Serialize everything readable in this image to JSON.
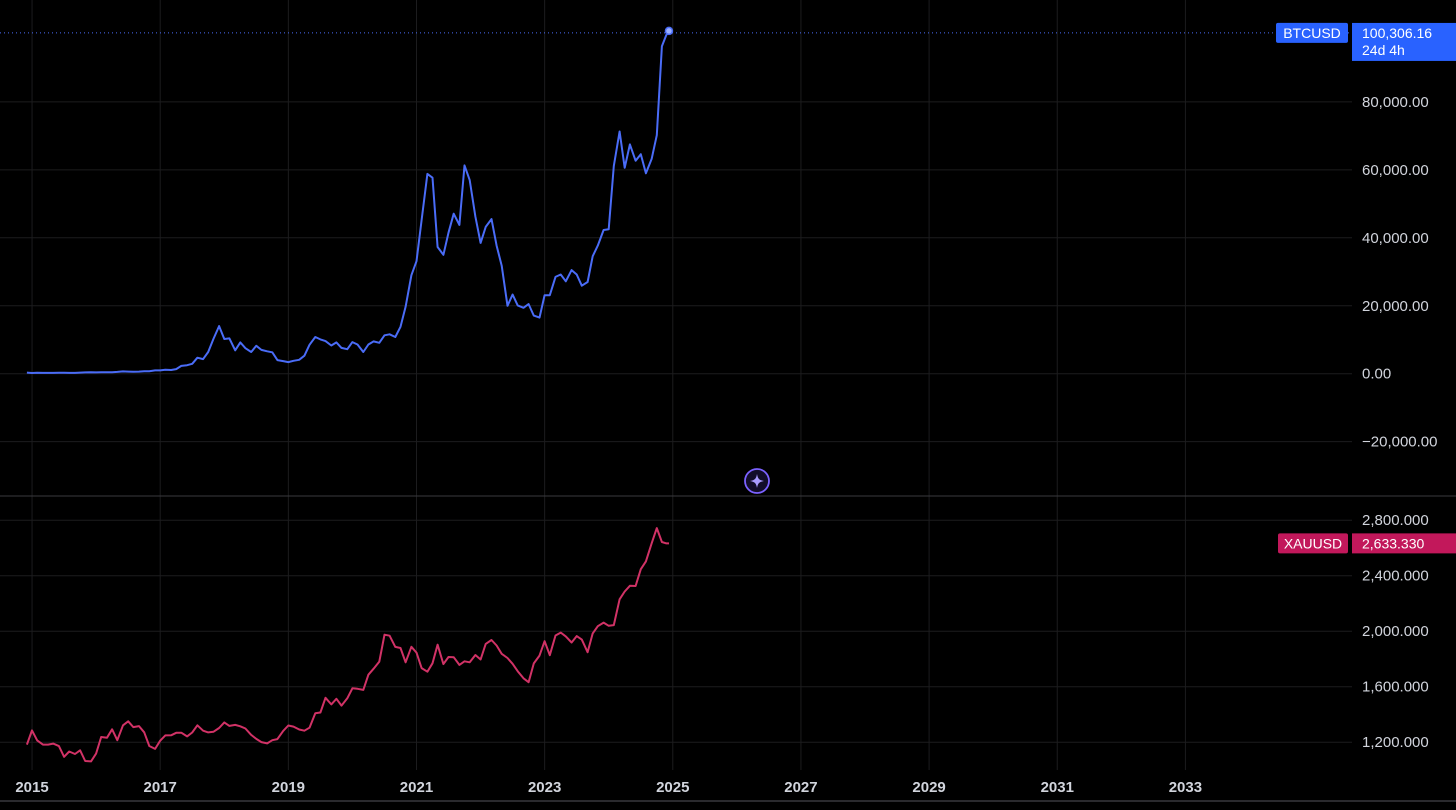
{
  "colors": {
    "background": "#000000",
    "grid": "#1c1c1e",
    "separator": "#3a3a3e",
    "btc_line": "#4a6cf7",
    "xau_line": "#d13266",
    "btc_badge": "#2962ff",
    "xau_badge": "#c2185b",
    "axis_text": "#d1d4dc",
    "ai_icon": "#7b61ff"
  },
  "icons": {
    "ai_button": "sparkle-icon"
  },
  "chart_data": [
    {
      "type": "line",
      "series": [
        {
          "name": "BTCUSD",
          "x": [
            2014.92,
            2015.0,
            2015.08,
            2015.17,
            2015.25,
            2015.33,
            2015.42,
            2015.5,
            2015.58,
            2015.67,
            2015.75,
            2015.83,
            2015.92,
            2016.0,
            2016.08,
            2016.17,
            2016.25,
            2016.33,
            2016.42,
            2016.5,
            2016.58,
            2016.67,
            2016.75,
            2016.83,
            2016.92,
            2017.0,
            2017.08,
            2017.17,
            2017.25,
            2017.33,
            2017.42,
            2017.5,
            2017.58,
            2017.67,
            2017.75,
            2017.83,
            2017.92,
            2018.0,
            2018.08,
            2018.17,
            2018.25,
            2018.33,
            2018.42,
            2018.5,
            2018.58,
            2018.67,
            2018.75,
            2018.83,
            2018.92,
            2019.0,
            2019.08,
            2019.17,
            2019.25,
            2019.33,
            2019.42,
            2019.5,
            2019.58,
            2019.67,
            2019.75,
            2019.83,
            2019.92,
            2020.0,
            2020.08,
            2020.17,
            2020.25,
            2020.33,
            2020.42,
            2020.5,
            2020.58,
            2020.67,
            2020.75,
            2020.83,
            2020.92,
            2021.0,
            2021.08,
            2021.17,
            2021.25,
            2021.33,
            2021.42,
            2021.5,
            2021.58,
            2021.67,
            2021.75,
            2021.83,
            2021.92,
            2022.0,
            2022.08,
            2022.17,
            2022.25,
            2022.33,
            2022.42,
            2022.5,
            2022.58,
            2022.67,
            2022.75,
            2022.83,
            2022.92,
            2023.0,
            2023.08,
            2023.17,
            2023.25,
            2023.33,
            2023.42,
            2023.5,
            2023.58,
            2023.67,
            2023.75,
            2023.83,
            2023.92,
            2024.0,
            2024.08,
            2024.17,
            2024.25,
            2024.33,
            2024.42,
            2024.5,
            2024.58,
            2024.67,
            2024.75,
            2024.83,
            2024.9,
            2024.94
          ],
          "values": [
            320,
            220,
            250,
            240,
            230,
            240,
            260,
            280,
            230,
            240,
            310,
            380,
            430,
            370,
            440,
            420,
            450,
            530,
            680,
            620,
            570,
            610,
            700,
            740,
            960,
            970,
            1190,
            1080,
            1350,
            2300,
            2500,
            2900,
            4700,
            4300,
            6400,
            10200,
            14000,
            10200,
            10400,
            6900,
            9200,
            7500,
            6400,
            8200,
            7000,
            6600,
            6300,
            4000,
            3700,
            3400,
            3800,
            4100,
            5300,
            8500,
            10800,
            10100,
            9600,
            8300,
            9200,
            7600,
            7200,
            9300,
            8600,
            6400,
            8600,
            9500,
            9100,
            11300,
            11600,
            10800,
            13800,
            19700,
            29000,
            33100,
            45200,
            58800,
            57700,
            37300,
            35000,
            41500,
            47100,
            43800,
            61300,
            57000,
            46200,
            38500,
            43200,
            45500,
            37700,
            31800,
            20000,
            23300,
            20100,
            19400,
            20500,
            17100,
            16500,
            23100,
            23100,
            28500,
            29200,
            27200,
            30500,
            29200,
            25900,
            27000,
            34600,
            37700,
            42300,
            42500,
            61100,
            71300,
            60600,
            67500,
            62700,
            64600,
            59000,
            63300,
            70200,
            96400,
            99800,
            100306
          ]
        }
      ],
      "ylim": [
        -36000,
        110000
      ],
      "y_ticks": [
        "−20,000.00",
        "0.00",
        "20,000.00",
        "40,000.00",
        "60,000.00",
        "80,000.00"
      ],
      "last_value_badge": {
        "symbol": "BTCUSD",
        "value": "100,306.16",
        "countdown": "24d 4h"
      }
    },
    {
      "type": "line",
      "series": [
        {
          "name": "XAUUSD",
          "x": [
            2014.92,
            2015.0,
            2015.08,
            2015.17,
            2015.25,
            2015.33,
            2015.42,
            2015.5,
            2015.58,
            2015.67,
            2015.75,
            2015.83,
            2015.92,
            2016.0,
            2016.08,
            2016.17,
            2016.25,
            2016.33,
            2016.42,
            2016.5,
            2016.58,
            2016.67,
            2016.75,
            2016.83,
            2016.92,
            2017.0,
            2017.08,
            2017.17,
            2017.25,
            2017.33,
            2017.42,
            2017.5,
            2017.58,
            2017.67,
            2017.75,
            2017.83,
            2017.92,
            2018.0,
            2018.08,
            2018.17,
            2018.25,
            2018.33,
            2018.42,
            2018.5,
            2018.58,
            2018.67,
            2018.75,
            2018.83,
            2018.92,
            2019.0,
            2019.08,
            2019.17,
            2019.25,
            2019.33,
            2019.42,
            2019.5,
            2019.58,
            2019.67,
            2019.75,
            2019.83,
            2019.92,
            2020.0,
            2020.08,
            2020.17,
            2020.25,
            2020.33,
            2020.42,
            2020.5,
            2020.58,
            2020.67,
            2020.75,
            2020.83,
            2020.92,
            2021.0,
            2021.08,
            2021.17,
            2021.25,
            2021.33,
            2021.42,
            2021.5,
            2021.58,
            2021.67,
            2021.75,
            2021.83,
            2021.92,
            2022.0,
            2022.08,
            2022.17,
            2022.25,
            2022.33,
            2022.42,
            2022.5,
            2022.58,
            2022.67,
            2022.75,
            2022.83,
            2022.92,
            2023.0,
            2023.08,
            2023.17,
            2023.25,
            2023.33,
            2023.42,
            2023.5,
            2023.58,
            2023.67,
            2023.75,
            2023.83,
            2023.92,
            2024.0,
            2024.08,
            2024.17,
            2024.25,
            2024.33,
            2024.42,
            2024.5,
            2024.58,
            2024.67,
            2024.75,
            2024.83,
            2024.9,
            2024.94
          ],
          "values": [
            1183,
            1285,
            1213,
            1183,
            1183,
            1190,
            1172,
            1095,
            1133,
            1115,
            1142,
            1065,
            1062,
            1118,
            1238,
            1233,
            1293,
            1215,
            1322,
            1351,
            1309,
            1316,
            1272,
            1173,
            1152,
            1211,
            1249,
            1250,
            1268,
            1269,
            1242,
            1270,
            1322,
            1283,
            1271,
            1275,
            1303,
            1343,
            1318,
            1325,
            1315,
            1299,
            1253,
            1224,
            1201,
            1192,
            1215,
            1223,
            1282,
            1321,
            1313,
            1292,
            1283,
            1305,
            1409,
            1414,
            1520,
            1473,
            1513,
            1464,
            1517,
            1589,
            1585,
            1577,
            1687,
            1730,
            1781,
            1975,
            1968,
            1887,
            1879,
            1776,
            1888,
            1846,
            1734,
            1708,
            1769,
            1903,
            1763,
            1814,
            1813,
            1757,
            1783,
            1776,
            1829,
            1796,
            1909,
            1937,
            1897,
            1837,
            1807,
            1765,
            1712,
            1661,
            1633,
            1768,
            1824,
            1928,
            1827,
            1969,
            1990,
            1963,
            1919,
            1965,
            1940,
            1849,
            1984,
            2036,
            2062,
            2039,
            2044,
            2230,
            2286,
            2327,
            2326,
            2447,
            2503,
            2634,
            2743,
            2643,
            2633,
            2633
          ],
          "color": "#d13266"
        }
      ],
      "ylim": [
        1000,
        2960
      ],
      "y_ticks": [
        "1,200.000",
        "1,600.000",
        "2,000.000",
        "2,400.000",
        "2,800.000"
      ],
      "last_value_badge": {
        "symbol": "XAUUSD",
        "value": "2,633.330"
      }
    }
  ],
  "time_axis": {
    "xlim": [
      2014.5,
      2035.6
    ],
    "tick_labels": [
      "2015",
      "2017",
      "2019",
      "2021",
      "2023",
      "2025",
      "2027",
      "2029",
      "2031",
      "2033"
    ]
  }
}
